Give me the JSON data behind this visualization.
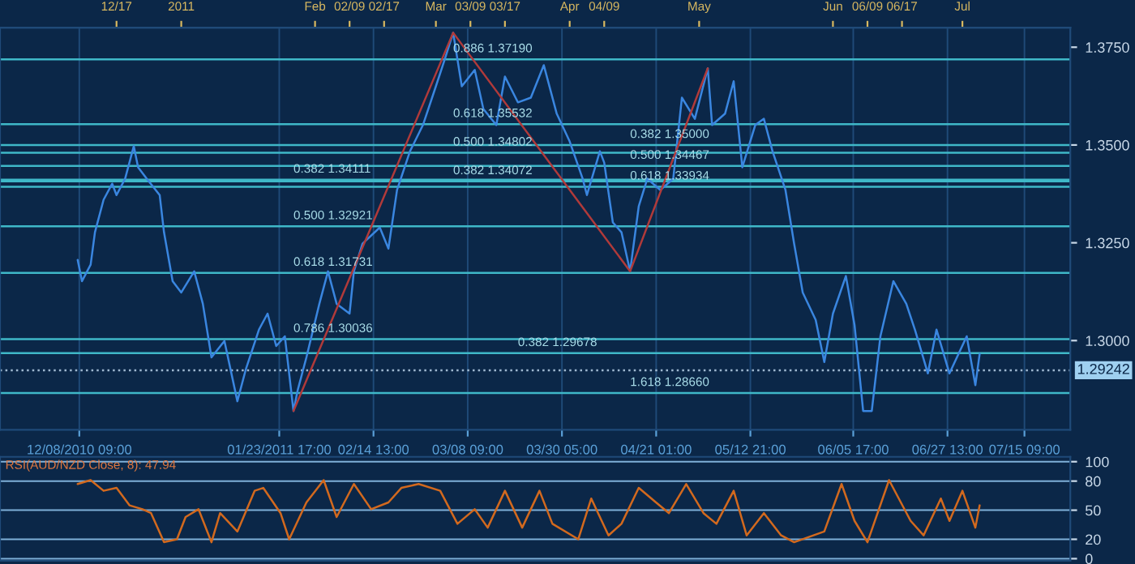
{
  "chart_data": [
    {
      "type": "line",
      "xlim": [
        "2010-11-20",
        "2011-07-26"
      ],
      "ylim": [
        1.2772,
        1.38
      ],
      "xticks": [
        {
          "value": "2010-12-08T09:00",
          "label": "12/08/2010 09:00"
        },
        {
          "value": "2011-01-23T17:00",
          "label": "01/23/2011 17:00"
        },
        {
          "value": "2011-02-14T13:00",
          "label": "02/14 13:00"
        },
        {
          "value": "2011-03-08T09:00",
          "label": "03/08 09:00"
        },
        {
          "value": "2011-03-30T05:00",
          "label": "03/30 05:00"
        },
        {
          "value": "2011-04-21T01:00",
          "label": "04/21 01:00"
        },
        {
          "value": "2011-05-12T21:00",
          "label": "05/12 21:00"
        },
        {
          "value": "2011-06-05T17:00",
          "label": "06/05 17:00"
        },
        {
          "value": "2011-06-27T13:00",
          "label": "06/27 13:00"
        },
        {
          "value": "2011-07-15T09:00",
          "label": "07/15 09:00"
        }
      ],
      "x2lim": [
        "2010-11-20",
        "2011-07-26"
      ],
      "x2ticks": [
        {
          "value": "2010-12-17",
          "label": "12/17"
        },
        {
          "value": "2011-01-01",
          "label": "2011"
        },
        {
          "value": "2011-02-01",
          "label": "Feb"
        },
        {
          "value": "2011-02-09",
          "label": "02/09"
        },
        {
          "value": "2011-02-17",
          "label": "02/17"
        },
        {
          "value": "2011-03-01",
          "label": "Mar"
        },
        {
          "value": "2011-03-09",
          "label": "03/09"
        },
        {
          "value": "2011-03-17",
          "label": "03/17"
        },
        {
          "value": "2011-04-01",
          "label": "Apr"
        },
        {
          "value": "2011-04-09",
          "label": "04/09"
        },
        {
          "value": "2011-05-01",
          "label": "May"
        },
        {
          "value": "2011-06-01",
          "label": "Jun"
        },
        {
          "value": "2011-06-09",
          "label": "06/09"
        },
        {
          "value": "2011-06-17",
          "label": "06/17"
        },
        {
          "value": "2011-07-01",
          "label": "Jul"
        }
      ],
      "yticks": [
        {
          "value": 1.3,
          "label": "1.3000"
        },
        {
          "value": 1.325,
          "label": "1.3250"
        },
        {
          "value": 1.35,
          "label": "1.3500"
        },
        {
          "value": 1.375,
          "label": "1.3750"
        }
      ],
      "grid": "x",
      "marker": "none",
      "line_style": "solid",
      "series": [
        {
          "color": "#3a86e0",
          "x": [
            "2010-12-08",
            "2010-12-09",
            "2010-12-11",
            "2010-12-12",
            "2010-12-14",
            "2010-12-16",
            "2010-12-17",
            "2010-12-19",
            "2010-12-21",
            "2010-12-22",
            "2010-12-24",
            "2010-12-27",
            "2010-12-28",
            "2010-12-30",
            "2011-01-01",
            "2011-01-04",
            "2011-01-06",
            "2011-01-08",
            "2011-01-11",
            "2011-01-14",
            "2011-01-16",
            "2011-01-19",
            "2011-01-21",
            "2011-01-23",
            "2011-01-25",
            "2011-01-27",
            "2011-01-28",
            "2011-01-30",
            "2011-02-02",
            "2011-02-04",
            "2011-02-06",
            "2011-02-09",
            "2011-02-10",
            "2011-02-12",
            "2011-02-16",
            "2011-02-18",
            "2011-02-20",
            "2011-02-23",
            "2011-02-26",
            "2011-03-01",
            "2011-03-03",
            "2011-03-05",
            "2011-03-07",
            "2011-03-10",
            "2011-03-12",
            "2011-03-15",
            "2011-03-17",
            "2011-03-20",
            "2011-03-23",
            "2011-03-26",
            "2011-03-29",
            "2011-04-01",
            "2011-04-04",
            "2011-04-05",
            "2011-04-08",
            "2011-04-09",
            "2011-04-11",
            "2011-04-13",
            "2011-04-15",
            "2011-04-17",
            "2011-04-19",
            "2011-04-22",
            "2011-04-25",
            "2011-04-27",
            "2011-04-30",
            "2011-05-03",
            "2011-05-04",
            "2011-05-07",
            "2011-05-09",
            "2011-05-11",
            "2011-05-14",
            "2011-05-16",
            "2011-05-18",
            "2011-05-21",
            "2011-05-23",
            "2011-05-25",
            "2011-05-28",
            "2011-05-30",
            "2011-06-01",
            "2011-06-04",
            "2011-06-06",
            "2011-06-08",
            "2011-06-10",
            "2011-06-12",
            "2011-06-15",
            "2011-06-18",
            "2011-06-20",
            "2011-06-23",
            "2011-06-25",
            "2011-06-28",
            "2011-07-02",
            "2011-07-04",
            "2011-07-05"
          ],
          "values": [
            1.3206,
            1.3152,
            1.3194,
            1.3277,
            1.336,
            1.3401,
            1.3372,
            1.3414,
            1.3497,
            1.3443,
            1.3414,
            1.3372,
            1.3277,
            1.3152,
            1.3123,
            1.3177,
            1.3094,
            1.2957,
            1.2999,
            1.2845,
            1.2928,
            1.3028,
            1.3069,
            1.2986,
            1.3011,
            1.282,
            1.2874,
            1.2957,
            1.3094,
            1.3177,
            1.3094,
            1.3069,
            1.3177,
            1.3248,
            1.3289,
            1.3235,
            1.3385,
            1.3484,
            1.3551,
            1.365,
            1.3717,
            1.3787,
            1.365,
            1.3692,
            1.3592,
            1.3551,
            1.3675,
            1.3609,
            1.3621,
            1.3704,
            1.358,
            1.3509,
            1.3414,
            1.3372,
            1.3484,
            1.3455,
            1.3302,
            1.3277,
            1.3177,
            1.3343,
            1.3414,
            1.3385,
            1.3414,
            1.3621,
            1.3567,
            1.3696,
            1.3551,
            1.358,
            1.3663,
            1.3443,
            1.3551,
            1.3567,
            1.3484,
            1.3385,
            1.3248,
            1.3123,
            1.3053,
            1.2945,
            1.3069,
            1.3165,
            1.304,
            1.282,
            1.282,
            1.3011,
            1.3152,
            1.3094,
            1.3028,
            1.2916,
            1.3028,
            1.2916,
            1.3011,
            1.2886,
            1.2966
          ]
        },
        {
          "color": "#b03a3a",
          "x": [
            "2011-01-27",
            "2011-03-05",
            "2011-04-15",
            "2011-05-03"
          ],
          "values": [
            1.282,
            1.3787,
            1.3177,
            1.3696
          ]
        }
      ],
      "ref_lines": [
        {
          "axis": "y",
          "value": 1.3719,
          "color": "#3fb8c8",
          "line_style": "solid"
        },
        {
          "axis": "y",
          "value": 1.35532,
          "color": "#3fb8c8",
          "line_style": "solid"
        },
        {
          "axis": "y",
          "value": 1.34802,
          "color": "#3fb8c8",
          "line_style": "solid"
        },
        {
          "axis": "y",
          "value": 1.34072,
          "color": "#3fb8c8",
          "line_style": "solid"
        },
        {
          "axis": "y",
          "value": 1.34111,
          "color": "#3fb8c8",
          "line_style": "solid"
        },
        {
          "axis": "y",
          "value": 1.32921,
          "color": "#3fb8c8",
          "line_style": "solid"
        },
        {
          "axis": "y",
          "value": 1.31731,
          "color": "#3fb8c8",
          "line_style": "solid"
        },
        {
          "axis": "y",
          "value": 1.30036,
          "color": "#3fb8c8",
          "line_style": "solid"
        },
        {
          "axis": "y",
          "value": 1.29678,
          "color": "#3fb8c8",
          "line_style": "solid"
        },
        {
          "axis": "y",
          "value": 1.35,
          "color": "#3fb8c8",
          "line_style": "solid"
        },
        {
          "axis": "y",
          "value": 1.34467,
          "color": "#3fb8c8",
          "line_style": "solid"
        },
        {
          "axis": "y",
          "value": 1.33934,
          "color": "#3fb8c8",
          "line_style": "solid"
        },
        {
          "axis": "y",
          "value": 1.2866,
          "color": "#3fb8c8",
          "line_style": "solid"
        },
        {
          "axis": "y",
          "value": 1.29242,
          "label": "1.29242",
          "color": "#9fb8d0",
          "line_style": "dotted"
        }
      ],
      "annotations": [
        {
          "text": "0.886 1.37190",
          "x": "2011-03-05",
          "y": 1.3719
        },
        {
          "text": "0.618 1.35532",
          "x": "2011-03-05",
          "y": 1.35532
        },
        {
          "text": "0.500 1.34802",
          "x": "2011-03-05",
          "y": 1.34802
        },
        {
          "text": "0.382 1.34072",
          "x": "2011-03-05",
          "y": 1.34072
        },
        {
          "text": "0.382 1.34111",
          "x": "2011-01-27",
          "y": 1.34111
        },
        {
          "text": "0.500 1.32921",
          "x": "2011-01-27",
          "y": 1.32921
        },
        {
          "text": "0.618 1.31731",
          "x": "2011-01-27",
          "y": 1.31731
        },
        {
          "text": "0.786 1.30036",
          "x": "2011-01-27",
          "y": 1.30036
        },
        {
          "text": "0.382 1.29678",
          "x": "2011-03-20",
          "y": 1.29678
        },
        {
          "text": "0.382 1.35000",
          "x": "2011-04-15",
          "y": 1.35
        },
        {
          "text": "0.500 1.34467",
          "x": "2011-04-15",
          "y": 1.34467
        },
        {
          "text": "0.618 1.33934",
          "x": "2011-04-15",
          "y": 1.33934
        },
        {
          "text": "1.618 1.28660",
          "x": "2011-04-15",
          "y": 1.2866
        }
      ]
    },
    {
      "type": "line",
      "title": "RSI(AUD/NZD Close, 8): 47.94",
      "xlim": [
        "2010-11-20",
        "2011-07-26"
      ],
      "ylim": [
        -2,
        105
      ],
      "yticks": [
        0,
        20,
        50,
        80,
        100
      ],
      "grid": "y",
      "tick_labels": "y",
      "marker": "none",
      "line_style": "solid",
      "series": [
        {
          "color": "#d2691e",
          "x": [
            "2010-12-08",
            "2010-12-11",
            "2010-12-14",
            "2010-12-17",
            "2010-12-20",
            "2010-12-23",
            "2010-12-25",
            "2010-12-28",
            "2010-12-31",
            "2011-01-02",
            "2011-01-05",
            "2011-01-08",
            "2011-01-10",
            "2011-01-14",
            "2011-01-18",
            "2011-01-20",
            "2011-01-24",
            "2011-01-26",
            "2011-01-30",
            "2011-02-03",
            "2011-02-06",
            "2011-02-10",
            "2011-02-14",
            "2011-02-18",
            "2011-02-21",
            "2011-02-25",
            "2011-03-02",
            "2011-03-06",
            "2011-03-10",
            "2011-03-13",
            "2011-03-17",
            "2011-03-21",
            "2011-03-25",
            "2011-03-28",
            "2011-04-03",
            "2011-04-06",
            "2011-04-10",
            "2011-04-13",
            "2011-04-17",
            "2011-04-21",
            "2011-04-24",
            "2011-04-28",
            "2011-05-02",
            "2011-05-05",
            "2011-05-09",
            "2011-05-12",
            "2011-05-16",
            "2011-05-20",
            "2011-05-23",
            "2011-05-30",
            "2011-06-03",
            "2011-06-06",
            "2011-06-09",
            "2011-06-14",
            "2011-06-19",
            "2011-06-22",
            "2011-06-26",
            "2011-06-28",
            "2011-07-01",
            "2011-07-04",
            "2011-07-05"
          ],
          "values": [
            77,
            81,
            70,
            73,
            55,
            51,
            47,
            17,
            20,
            43,
            51,
            17,
            47,
            28,
            70,
            73,
            47,
            20,
            58,
            81,
            43,
            77,
            51,
            58,
            73,
            77,
            70,
            36,
            51,
            32,
            70,
            32,
            70,
            36,
            20,
            62,
            24,
            36,
            73,
            58,
            47,
            77,
            47,
            36,
            70,
            24,
            47,
            24,
            17,
            28,
            77,
            39,
            17,
            81,
            39,
            24,
            62,
            39,
            70,
            32,
            55
          ]
        }
      ]
    }
  ]
}
